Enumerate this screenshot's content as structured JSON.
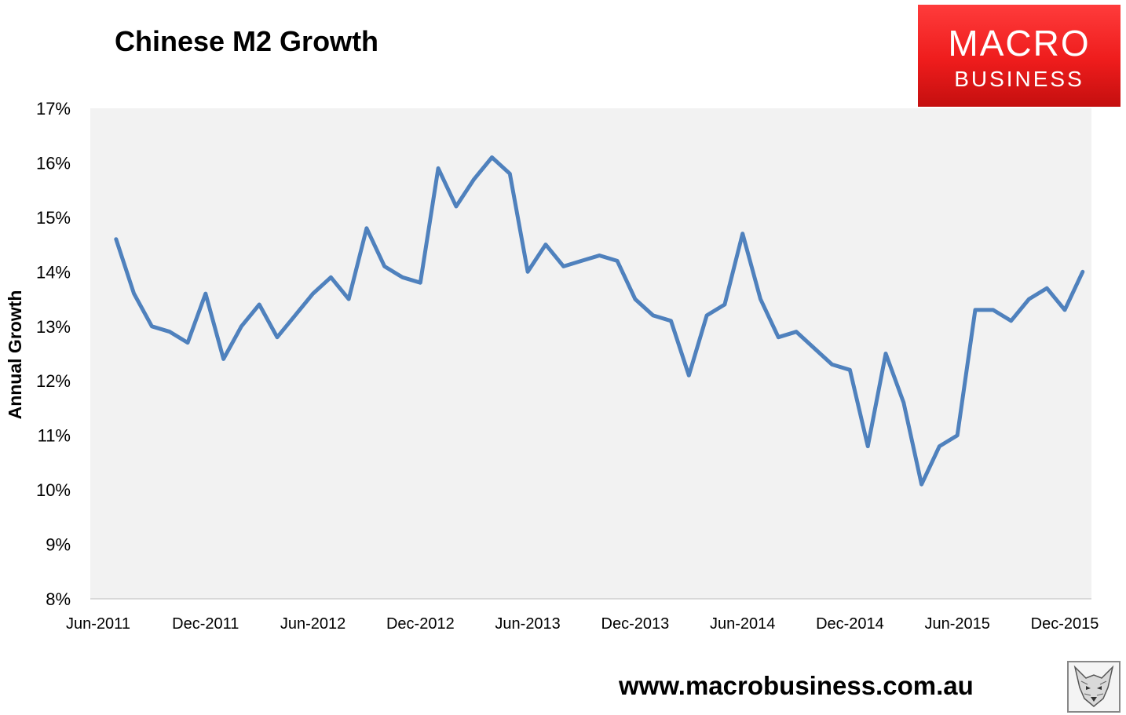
{
  "header": {
    "title": "Chinese M2 Growth"
  },
  "logo": {
    "line1": "MACRO",
    "line2": "BUSINESS"
  },
  "footer": {
    "url": "www.macrobusiness.com.au"
  },
  "colors": {
    "line": "#4f81bd",
    "plot_bg": "#f2f2f2",
    "logo_red": "#ee1c1c"
  },
  "chart_data": {
    "type": "line",
    "title": "Chinese M2 Growth",
    "xlabel": "",
    "ylabel": "Annual Growth",
    "ylim": [
      8,
      17
    ],
    "y_ticks": [
      "8%",
      "9%",
      "10%",
      "11%",
      "12%",
      "13%",
      "14%",
      "15%",
      "16%",
      "17%"
    ],
    "x_ticks": [
      "Jun-2011",
      "Dec-2011",
      "Jun-2012",
      "Dec-2012",
      "Jun-2013",
      "Dec-2013",
      "Jun-2014",
      "Dec-2014",
      "Jun-2015",
      "Dec-2015"
    ],
    "x_tick_month_index": [
      0,
      6,
      12,
      18,
      24,
      30,
      36,
      42,
      48,
      54
    ],
    "grid": false,
    "legend": "none",
    "x": [
      "Jul-2011",
      "Aug-2011",
      "Sep-2011",
      "Oct-2011",
      "Nov-2011",
      "Dec-2011",
      "Jan-2012",
      "Feb-2012",
      "Mar-2012",
      "Apr-2012",
      "May-2012",
      "Jun-2012",
      "Jul-2012",
      "Aug-2012",
      "Sep-2012",
      "Oct-2012",
      "Nov-2012",
      "Dec-2012",
      "Jan-2013",
      "Feb-2013",
      "Mar-2013",
      "Apr-2013",
      "May-2013",
      "Jun-2013",
      "Jul-2013",
      "Aug-2013",
      "Sep-2013",
      "Oct-2013",
      "Nov-2013",
      "Dec-2013",
      "Jan-2014",
      "Feb-2014",
      "Mar-2014",
      "Apr-2014",
      "May-2014",
      "Jun-2014",
      "Jul-2014",
      "Aug-2014",
      "Sep-2014",
      "Oct-2014",
      "Nov-2014",
      "Dec-2014",
      "Jan-2015",
      "Feb-2015",
      "Mar-2015",
      "Apr-2015",
      "May-2015",
      "Jun-2015",
      "Jul-2015",
      "Aug-2015",
      "Sep-2015",
      "Oct-2015",
      "Nov-2015",
      "Dec-2015",
      "Jan-2016"
    ],
    "series": [
      {
        "values": [
          14.6,
          13.6,
          13.0,
          12.9,
          12.7,
          13.6,
          12.4,
          13.0,
          13.4,
          12.8,
          13.2,
          13.6,
          13.9,
          13.5,
          14.8,
          14.1,
          13.9,
          13.8,
          15.9,
          15.2,
          15.7,
          16.1,
          15.8,
          14.0,
          14.5,
          14.1,
          14.2,
          14.3,
          14.2,
          13.5,
          13.2,
          13.1,
          12.1,
          13.2,
          13.4,
          14.7,
          13.5,
          12.8,
          12.9,
          12.6,
          12.3,
          12.2,
          10.8,
          12.5,
          11.6,
          10.1,
          10.8,
          11.0,
          13.3,
          13.3,
          13.1,
          13.5,
          13.7,
          13.3,
          14.0
        ]
      }
    ]
  }
}
